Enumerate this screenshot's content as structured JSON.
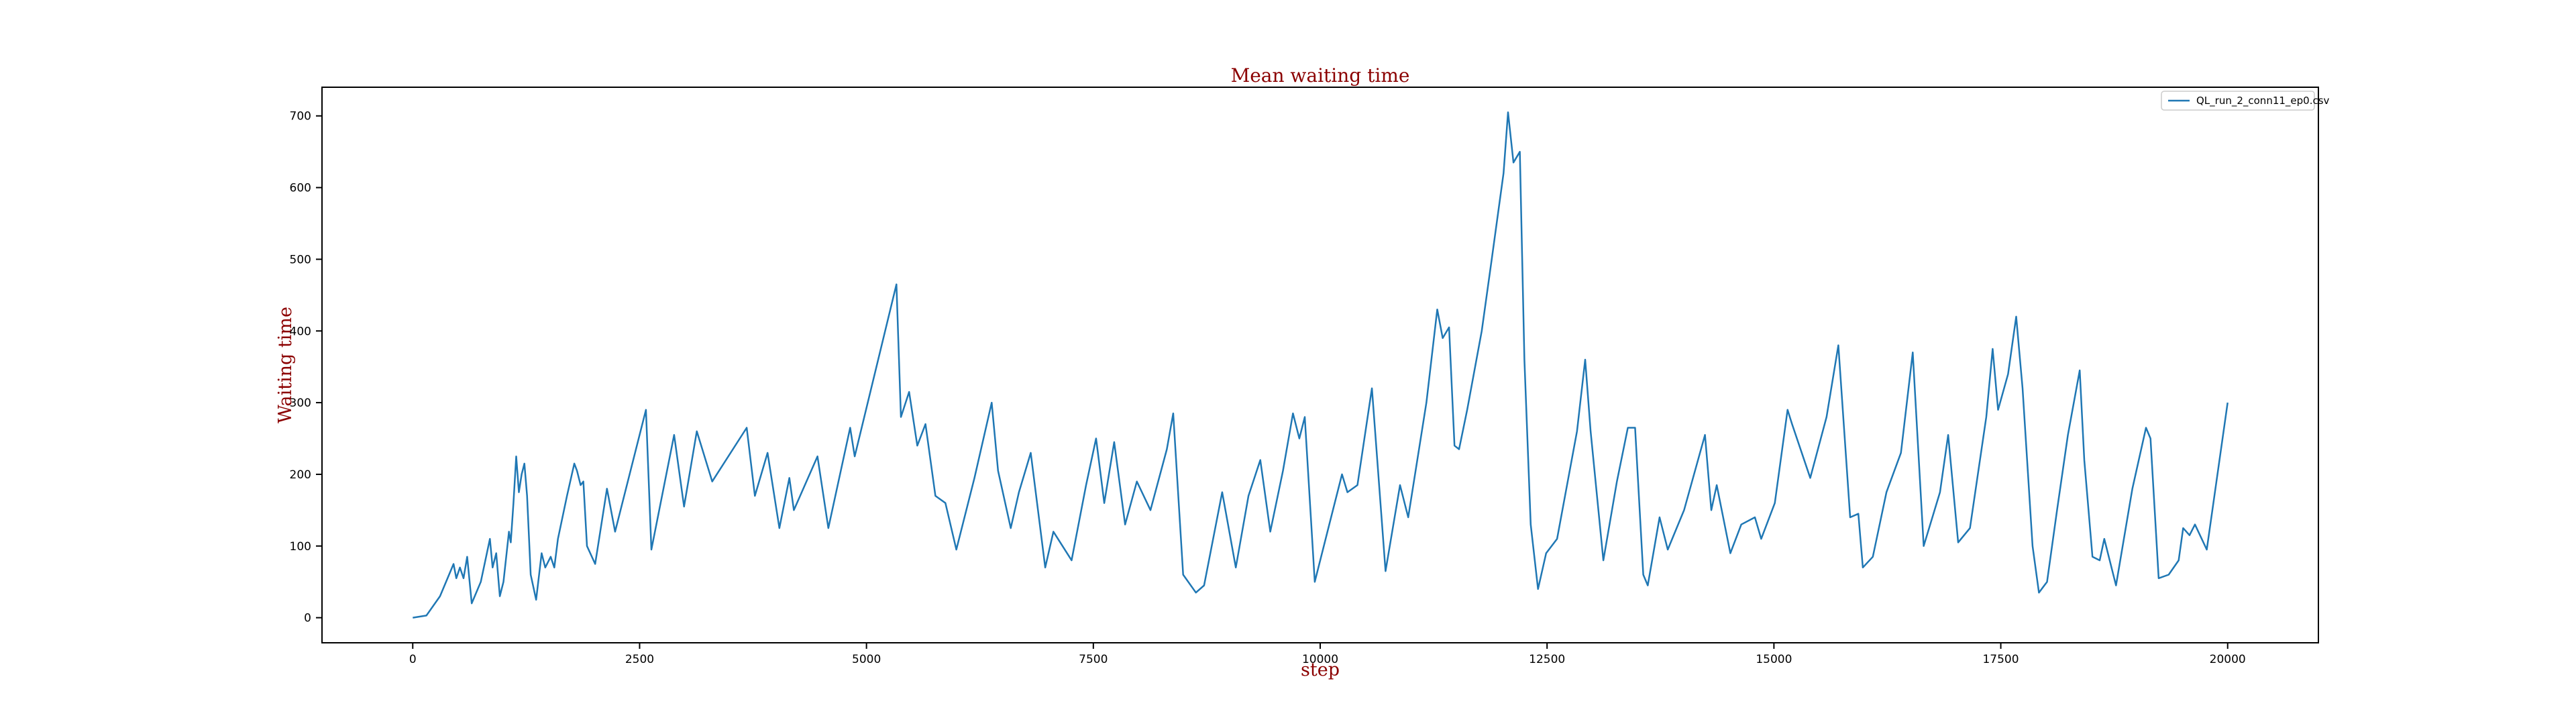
{
  "chart_data": {
    "type": "line",
    "title": "Mean waiting time",
    "x_label": "step",
    "y_label": "Waiting time",
    "xlim": [
      -1000,
      21000
    ],
    "ylim": [
      -35,
      740
    ],
    "xticks": [
      0,
      2500,
      5000,
      7500,
      10000,
      12500,
      15000,
      17500,
      20000
    ],
    "yticks": [
      0,
      100,
      200,
      300,
      400,
      500,
      600,
      700
    ],
    "grid": false,
    "legend_position": "upper right",
    "series": [
      {
        "name": "QL_run_2_conn11_ep0.csv",
        "color": "#1f77b4",
        "x": [
          0,
          150,
          300,
          400,
          450,
          480,
          520,
          560,
          600,
          650,
          750,
          850,
          880,
          920,
          960,
          1000,
          1060,
          1080,
          1110,
          1140,
          1170,
          1200,
          1230,
          1260,
          1300,
          1360,
          1420,
          1460,
          1520,
          1560,
          1600,
          1700,
          1780,
          1810,
          1850,
          1880,
          1920,
          2010,
          2140,
          2230,
          2570,
          2630,
          2880,
          2990,
          3130,
          3300,
          3680,
          3770,
          3910,
          4040,
          4150,
          4200,
          4460,
          4580,
          4820,
          4870,
          5330,
          5380,
          5470,
          5560,
          5650,
          5760,
          5870,
          5990,
          6190,
          6380,
          6450,
          6590,
          6680,
          6810,
          6970,
          7060,
          7260,
          7420,
          7530,
          7620,
          7730,
          7850,
          7980,
          8130,
          8310,
          8380,
          8490,
          8630,
          8720,
          8920,
          9070,
          9210,
          9340,
          9450,
          9590,
          9700,
          9770,
          9830,
          9940,
          10080,
          10240,
          10300,
          10410,
          10570,
          10720,
          10880,
          10970,
          11170,
          11290,
          11350,
          11420,
          11480,
          11530,
          11620,
          11780,
          11890,
          12020,
          12070,
          12130,
          12200,
          12250,
          12320,
          12400,
          12490,
          12610,
          12830,
          12920,
          12980,
          13120,
          13270,
          13390,
          13470,
          13560,
          13610,
          13740,
          13830,
          14010,
          14240,
          14310,
          14370,
          14520,
          14640,
          14790,
          14860,
          15010,
          15150,
          15200,
          15400,
          15580,
          15710,
          15840,
          15930,
          15980,
          16090,
          16240,
          16400,
          16530,
          16650,
          16830,
          16920,
          17030,
          17160,
          17340,
          17410,
          17470,
          17580,
          17670,
          17740,
          17850,
          17920,
          18010,
          18120,
          18240,
          18370,
          18420,
          18510,
          18590,
          18640,
          18770,
          18950,
          19100,
          19150,
          19240,
          19350,
          19460,
          19510,
          19580,
          19640,
          19770,
          20000
        ],
        "values": [
          0,
          3,
          30,
          60,
          75,
          55,
          70,
          55,
          85,
          20,
          50,
          110,
          70,
          90,
          30,
          50,
          120,
          105,
          160,
          225,
          175,
          200,
          215,
          170,
          60,
          25,
          90,
          70,
          85,
          70,
          110,
          170,
          215,
          205,
          185,
          190,
          100,
          75,
          180,
          120,
          290,
          95,
          255,
          155,
          260,
          190,
          265,
          170,
          230,
          125,
          195,
          150,
          225,
          125,
          265,
          225,
          465,
          280,
          315,
          240,
          270,
          170,
          160,
          95,
          195,
          300,
          205,
          125,
          175,
          230,
          70,
          120,
          80,
          185,
          250,
          160,
          245,
          130,
          190,
          150,
          235,
          285,
          60,
          35,
          45,
          175,
          70,
          170,
          220,
          120,
          205,
          285,
          250,
          280,
          50,
          120,
          200,
          175,
          185,
          320,
          65,
          185,
          140,
          300,
          430,
          390,
          405,
          240,
          235,
          290,
          400,
          500,
          620,
          705,
          635,
          650,
          360,
          130,
          40,
          90,
          110,
          260,
          360,
          260,
          80,
          190,
          265,
          265,
          60,
          45,
          140,
          95,
          150,
          255,
          150,
          185,
          90,
          130,
          140,
          110,
          160,
          290,
          270,
          195,
          280,
          380,
          140,
          145,
          70,
          85,
          175,
          230,
          370,
          100,
          175,
          255,
          105,
          125,
          280,
          375,
          290,
          340,
          420,
          320,
          100,
          35,
          50,
          150,
          255,
          345,
          220,
          85,
          80,
          110,
          45,
          180,
          265,
          250,
          55,
          60,
          80,
          125,
          115,
          130,
          95,
          300
        ]
      }
    ]
  }
}
